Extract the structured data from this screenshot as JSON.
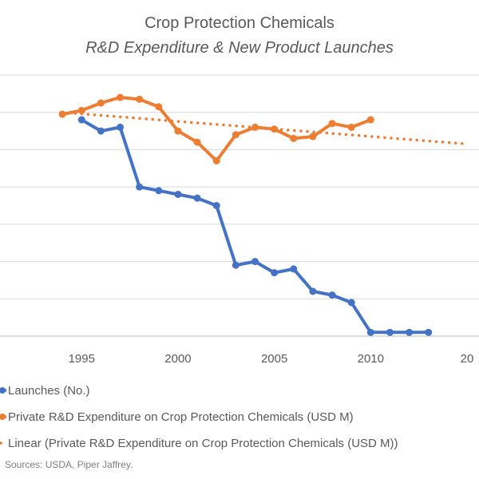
{
  "chart_data": {
    "type": "line",
    "title": "Crop Protection Chemicals",
    "subtitle": "R&D Expenditure & New Product Launches",
    "x_ticks": [
      "1995",
      "2000",
      "2005",
      "2010",
      "20"
    ],
    "xlim": [
      1993,
      2015
    ],
    "ylim": [
      0,
      7
    ],
    "y_grid_count": 7,
    "grid": true,
    "legend_position": "bottom",
    "series": [
      {
        "name": "Launches (No.)",
        "color": "#4472C4",
        "style": "solid-markers",
        "x": [
          1995,
          1996,
          1997,
          1998,
          1999,
          2000,
          2001,
          2002,
          2003,
          2004,
          2005,
          2006,
          2007,
          2008,
          2009,
          2010,
          2011,
          2012,
          2013
        ],
        "values": [
          5.8,
          5.5,
          5.6,
          4.0,
          3.9,
          3.8,
          3.7,
          3.5,
          1.9,
          2.0,
          1.7,
          1.8,
          1.2,
          1.1,
          0.9,
          0.1,
          0.1,
          0.1,
          0.1
        ]
      },
      {
        "name": "Private R&D Expenditure on Crop Protection Chemicals (USD M)",
        "color": "#ED7D31",
        "style": "solid-markers",
        "x": [
          1994,
          1995,
          1996,
          1997,
          1998,
          1999,
          2000,
          2001,
          2002,
          2003,
          2004,
          2005,
          2006,
          2007,
          2008,
          2009,
          2010
        ],
        "values": [
          5.95,
          6.05,
          6.25,
          6.4,
          6.35,
          6.15,
          5.5,
          5.2,
          4.7,
          5.4,
          5.6,
          5.55,
          5.3,
          5.35,
          5.7,
          5.6,
          5.8
        ]
      },
      {
        "name": "Linear  (Private R&D Expenditure on Crop Protection Chemicals (USD M))",
        "color": "#ED7D31",
        "style": "dotted",
        "x": [
          1994,
          2015
        ],
        "values": [
          6.0,
          5.15
        ]
      }
    ],
    "source": "Sources: USDA, Piper Jaffrey."
  }
}
